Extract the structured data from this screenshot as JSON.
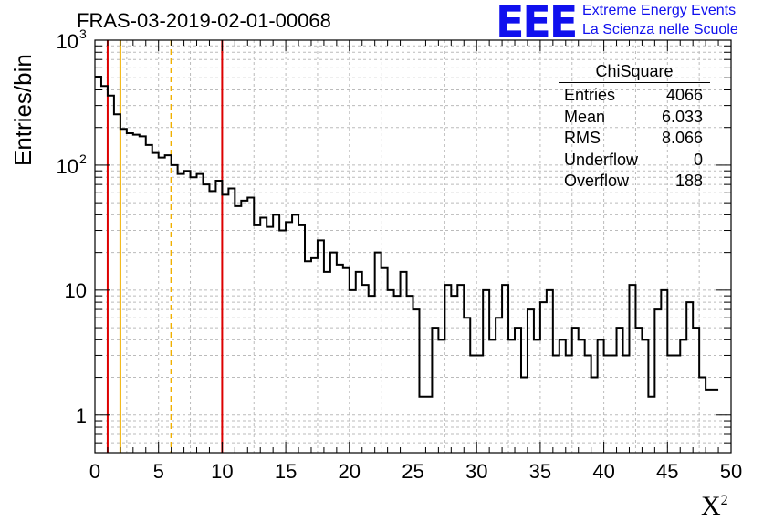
{
  "header": {
    "title": "FRAS-03-2019-02-01-00068"
  },
  "logo": {
    "mark": "EEE",
    "line1": "Extreme Energy Events",
    "line2": "La Scienza nelle Scuole"
  },
  "stats": {
    "title": "ChiSquare",
    "rows": [
      {
        "label": "Entries",
        "value": "4066"
      },
      {
        "label": "Mean",
        "value": "6.033"
      },
      {
        "label": "RMS",
        "value": "8.066"
      },
      {
        "label": "Underflow",
        "value": "0"
      },
      {
        "label": "Overflow",
        "value": "188"
      }
    ]
  },
  "chart_data": {
    "type": "histogram",
    "title": "FRAS-03-2019-02-01-00068",
    "xlabel": "X",
    "xlabel_superscript": "2",
    "ylabel": "Entries/bin",
    "xlim": [
      0,
      50
    ],
    "ylim": [
      0.5,
      1000
    ],
    "y_scale": "log",
    "grid": true,
    "bin_width": 0.5,
    "x_ticks": [
      0,
      5,
      10,
      15,
      20,
      25,
      30,
      35,
      40,
      45,
      50
    ],
    "x_tick_labels": [
      "0",
      "5",
      "10",
      "15",
      "20",
      "25",
      "30",
      "35",
      "40",
      "45",
      "50"
    ],
    "y_tick_labels": [
      {
        "value": 1,
        "base": "1",
        "exp": ""
      },
      {
        "value": 10,
        "base": "10",
        "exp": ""
      },
      {
        "value": 100,
        "base": "10",
        "exp": "2"
      },
      {
        "value": 1000,
        "base": "10",
        "exp": "3"
      }
    ],
    "values": [
      510,
      430,
      360,
      255,
      195,
      180,
      175,
      170,
      145,
      125,
      115,
      120,
      100,
      85,
      90,
      80,
      85,
      70,
      62,
      75,
      58,
      65,
      47,
      52,
      55,
      33,
      38,
      32,
      40,
      30,
      35,
      40,
      33,
      17,
      18,
      25,
      14,
      20,
      16,
      15,
      10,
      14,
      11,
      9,
      20,
      15,
      10,
      9,
      14,
      9,
      7,
      1.4,
      1.4,
      5,
      4,
      11,
      9,
      11,
      6,
      3,
      3,
      10,
      4,
      6,
      11,
      4,
      5,
      2,
      7,
      4,
      8,
      10,
      3,
      4,
      3,
      5,
      4,
      3,
      2,
      4,
      3,
      3,
      5,
      3,
      11,
      5,
      4,
      1.4,
      7,
      10,
      3,
      3,
      4,
      8,
      5,
      2,
      1.6,
      1.6
    ],
    "reference_lines": [
      {
        "x": 1,
        "color": "#dd0000",
        "style": "solid"
      },
      {
        "x": 2,
        "color": "#f0b000",
        "style": "solid"
      },
      {
        "x": 6,
        "color": "#f0b000",
        "style": "dashed"
      },
      {
        "x": 10,
        "color": "#dd0000",
        "style": "solid"
      }
    ],
    "colors": {
      "histogram": "#000000",
      "grid": "#bbbbbb"
    }
  }
}
